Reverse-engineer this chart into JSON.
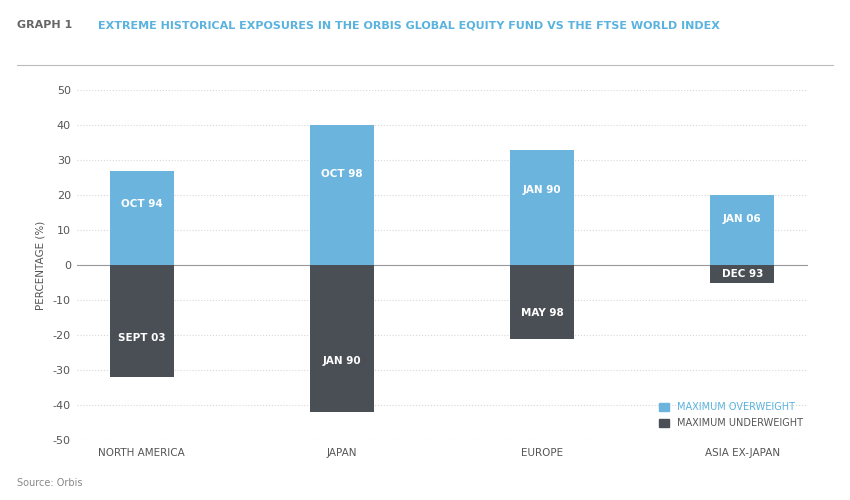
{
  "title_prefix": "GRAPH 1",
  "title_main": "EXTREME HISTORICAL EXPOSURES IN THE ORBIS GLOBAL EQUITY FUND VS THE FTSE WORLD INDEX",
  "categories": [
    "NORTH AMERICA",
    "JAPAN",
    "EUROPE",
    "ASIA EX-JAPAN"
  ],
  "overweight_values": [
    27,
    40,
    33,
    20
  ],
  "underweight_values": [
    -32,
    -42,
    -21,
    -5
  ],
  "overweight_labels": [
    "OCT 94",
    "OCT 98",
    "JAN 90",
    "JAN 06"
  ],
  "underweight_labels": [
    "SEPT 03",
    "JAN 90",
    "MAY 98",
    "DEC 93"
  ],
  "overweight_color": "#6ab4de",
  "underweight_color": "#4a4f56",
  "bar_width": 0.32,
  "ylim": [
    -50,
    50
  ],
  "yticks": [
    -50,
    -40,
    -30,
    -20,
    -10,
    0,
    10,
    20,
    30,
    40,
    50
  ],
  "ylabel": "PERCENTAGE (%)",
  "legend_overweight": "MAXIMUM OVERWEIGHT",
  "legend_underweight": "MAXIMUM UNDERWEIGHT",
  "source_text": "Source: Orbis",
  "background_color": "#ffffff",
  "title_color": "#5ab3de",
  "prefix_color": "#666666",
  "bar_label_color": "#ffffff",
  "bar_label_fontsize": 7.5,
  "ylabel_fontsize": 7.5,
  "tick_fontsize": 8,
  "cat_fontsize": 7.5,
  "grid_color": "#d8d8d8",
  "zero_line_color": "#999999",
  "title_line_color": "#bbbbbb",
  "legend_over_color": "#5ab3de",
  "legend_under_color": "#555555"
}
